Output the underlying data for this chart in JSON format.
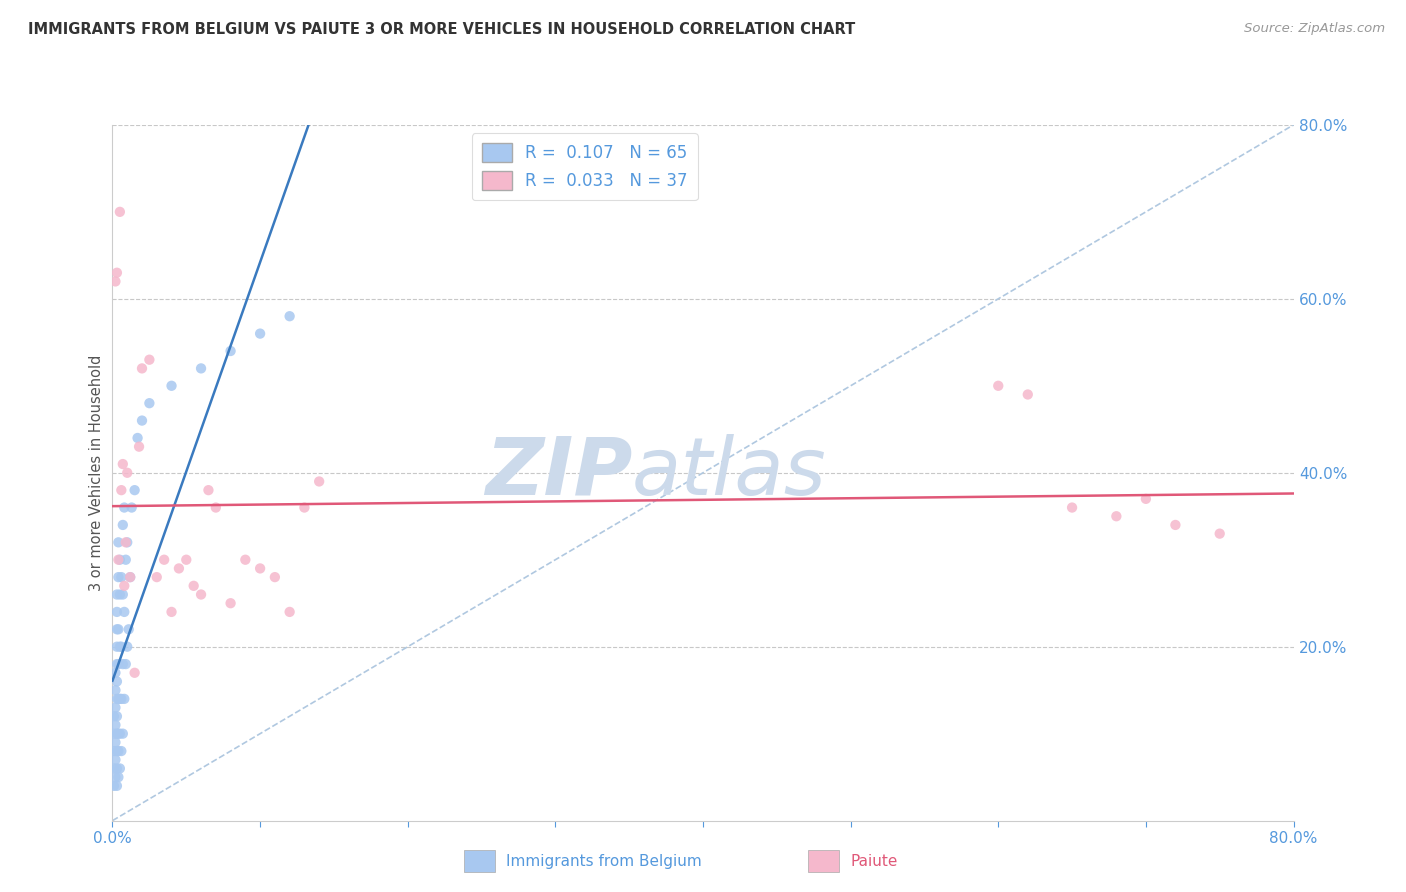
{
  "title": "IMMIGRANTS FROM BELGIUM VS PAIUTE 3 OR MORE VEHICLES IN HOUSEHOLD CORRELATION CHART",
  "source": "Source: ZipAtlas.com",
  "ylabel": "3 or more Vehicles in Household",
  "x_min": 0.0,
  "x_max": 0.8,
  "y_min": 0.0,
  "y_max": 0.8,
  "legend_entry_1": "R =  0.107   N = 65",
  "legend_entry_2": "R =  0.033   N = 37",
  "belgium_color": "#a8c8f0",
  "paiute_color": "#f5b8cc",
  "belgium_line_color": "#3a7abf",
  "paiute_line_color": "#e05878",
  "dashed_line_color": "#b0c8e0",
  "background_color": "#ffffff",
  "grid_color": "#c8c8c8",
  "watermark_color": "#ccdaeb",
  "title_color": "#333333",
  "source_color": "#999999",
  "axis_label_color": "#555555",
  "tick_color": "#5599dd",
  "belgium_x": [
    0.001,
    0.001,
    0.001,
    0.001,
    0.001,
    0.002,
    0.002,
    0.002,
    0.002,
    0.002,
    0.002,
    0.002,
    0.003,
    0.003,
    0.003,
    0.003,
    0.003,
    0.003,
    0.003,
    0.003,
    0.003,
    0.003,
    0.003,
    0.003,
    0.004,
    0.004,
    0.004,
    0.004,
    0.004,
    0.004,
    0.004,
    0.004,
    0.005,
    0.005,
    0.005,
    0.005,
    0.005,
    0.005,
    0.006,
    0.006,
    0.006,
    0.006,
    0.007,
    0.007,
    0.007,
    0.007,
    0.008,
    0.008,
    0.008,
    0.009,
    0.009,
    0.01,
    0.01,
    0.011,
    0.012,
    0.013,
    0.015,
    0.017,
    0.02,
    0.025,
    0.04,
    0.06,
    0.08,
    0.1,
    0.12
  ],
  "belgium_y": [
    0.04,
    0.06,
    0.08,
    0.1,
    0.12,
    0.05,
    0.07,
    0.09,
    0.11,
    0.13,
    0.15,
    0.17,
    0.04,
    0.06,
    0.08,
    0.1,
    0.12,
    0.14,
    0.16,
    0.18,
    0.2,
    0.22,
    0.24,
    0.26,
    0.05,
    0.08,
    0.1,
    0.14,
    0.18,
    0.22,
    0.28,
    0.32,
    0.06,
    0.1,
    0.14,
    0.2,
    0.26,
    0.3,
    0.08,
    0.14,
    0.2,
    0.28,
    0.1,
    0.18,
    0.26,
    0.34,
    0.14,
    0.24,
    0.36,
    0.18,
    0.3,
    0.2,
    0.32,
    0.22,
    0.28,
    0.36,
    0.38,
    0.44,
    0.46,
    0.48,
    0.5,
    0.52,
    0.54,
    0.56,
    0.58
  ],
  "paiute_x": [
    0.002,
    0.003,
    0.004,
    0.005,
    0.006,
    0.007,
    0.008,
    0.009,
    0.01,
    0.012,
    0.015,
    0.018,
    0.02,
    0.025,
    0.03,
    0.035,
    0.04,
    0.045,
    0.05,
    0.055,
    0.06,
    0.065,
    0.07,
    0.08,
    0.09,
    0.1,
    0.11,
    0.12,
    0.13,
    0.14,
    0.6,
    0.62,
    0.65,
    0.68,
    0.7,
    0.72,
    0.75
  ],
  "paiute_y": [
    0.62,
    0.63,
    0.3,
    0.7,
    0.38,
    0.41,
    0.27,
    0.32,
    0.4,
    0.28,
    0.17,
    0.43,
    0.52,
    0.53,
    0.28,
    0.3,
    0.24,
    0.29,
    0.3,
    0.27,
    0.26,
    0.38,
    0.36,
    0.25,
    0.3,
    0.29,
    0.28,
    0.24,
    0.36,
    0.39,
    0.5,
    0.49,
    0.36,
    0.35,
    0.37,
    0.34,
    0.33
  ]
}
